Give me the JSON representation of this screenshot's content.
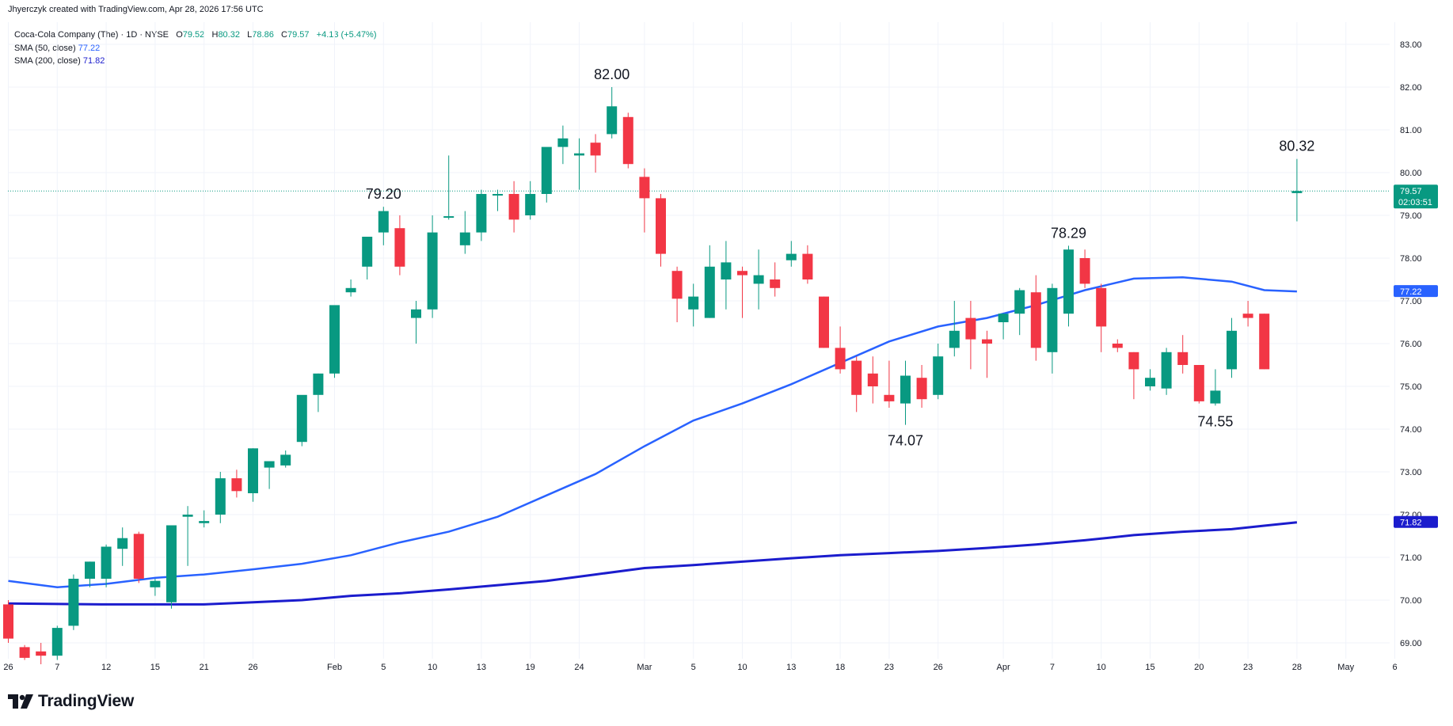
{
  "header": {
    "attribution": "Jhyerczyk created with TradingView.com, Apr 28, 2026 17:56 UTC"
  },
  "legend": {
    "symbol": "Coca-Cola Company (The) · 1D · NYSE",
    "o_label": "O",
    "o_value": "79.52",
    "h_label": "H",
    "h_value": "80.32",
    "l_label": "L",
    "l_value": "78.86",
    "c_label": "C",
    "c_value": "79.57",
    "change": "+4.13 (+5.47%)",
    "sma50_label": "SMA (50, close)",
    "sma50_value": "77.22",
    "sma200_label": "SMA (200, close)",
    "sma200_value": "71.82"
  },
  "brand": {
    "name": "TradingView",
    "icon": "tradingview-logo-icon"
  },
  "colors": {
    "up": "#089981",
    "down": "#f23645",
    "sma50": "#2962ff",
    "sma200": "#1b1ccd",
    "last_price_line": "#089981",
    "grid": "#f0f3fa",
    "text": "#131722"
  },
  "chart_data": {
    "type": "candlestick",
    "ylim": [
      68.6,
      83.4
    ],
    "y_ticks": [
      "69.00",
      "70.00",
      "71.00",
      "72.00",
      "73.00",
      "74.00",
      "75.00",
      "76.00",
      "77.00",
      "78.00",
      "79.00",
      "80.00",
      "81.00",
      "82.00",
      "83.00"
    ],
    "x_ticks": [
      {
        "label": "26",
        "index": 0
      },
      {
        "label": "7",
        "index": 3
      },
      {
        "label": "12",
        "index": 6
      },
      {
        "label": "15",
        "index": 9
      },
      {
        "label": "21",
        "index": 12
      },
      {
        "label": "26",
        "index": 15
      },
      {
        "label": "Feb",
        "index": 20
      },
      {
        "label": "5",
        "index": 23
      },
      {
        "label": "10",
        "index": 26
      },
      {
        "label": "13",
        "index": 29
      },
      {
        "label": "19",
        "index": 32
      },
      {
        "label": "24",
        "index": 35
      },
      {
        "label": "Mar",
        "index": 39
      },
      {
        "label": "5",
        "index": 42
      },
      {
        "label": "10",
        "index": 45
      },
      {
        "label": "13",
        "index": 48
      },
      {
        "label": "18",
        "index": 51
      },
      {
        "label": "23",
        "index": 54
      },
      {
        "label": "26",
        "index": 57
      },
      {
        "label": "Apr",
        "index": 61
      },
      {
        "label": "7",
        "index": 64
      },
      {
        "label": "10",
        "index": 67
      },
      {
        "label": "15",
        "index": 70
      },
      {
        "label": "20",
        "index": 73
      },
      {
        "label": "23",
        "index": 76
      },
      {
        "label": "28",
        "index": 79
      },
      {
        "label": "May",
        "index": 82
      },
      {
        "label": "6",
        "index": 85
      }
    ],
    "candles": [
      [
        69.9,
        70.0,
        69.0,
        69.1
      ],
      [
        68.9,
        68.95,
        68.6,
        68.65
      ],
      [
        68.8,
        69.0,
        68.5,
        68.7
      ],
      [
        68.7,
        69.4,
        68.6,
        69.35
      ],
      [
        69.4,
        70.6,
        69.3,
        70.5
      ],
      [
        70.5,
        70.9,
        70.3,
        70.9
      ],
      [
        70.5,
        71.3,
        70.3,
        71.25
      ],
      [
        71.2,
        71.7,
        70.8,
        71.45
      ],
      [
        71.55,
        71.6,
        70.4,
        70.5
      ],
      [
        70.3,
        70.5,
        70.1,
        70.45
      ],
      [
        69.95,
        71.75,
        69.8,
        71.75
      ],
      [
        71.95,
        72.2,
        70.8,
        72.0
      ],
      [
        71.8,
        72.1,
        71.7,
        71.85
      ],
      [
        72.0,
        73.0,
        71.8,
        72.85
      ],
      [
        72.85,
        73.05,
        72.4,
        72.55
      ],
      [
        72.5,
        73.55,
        72.3,
        73.55
      ],
      [
        73.1,
        73.25,
        72.6,
        73.25
      ],
      [
        73.15,
        73.5,
        73.1,
        73.4
      ],
      [
        73.7,
        74.6,
        73.6,
        74.8
      ],
      [
        74.8,
        75.3,
        74.4,
        75.3
      ],
      [
        75.3,
        76.0,
        75.2,
        76.9
      ],
      [
        77.2,
        77.5,
        77.1,
        77.3
      ],
      [
        77.8,
        78.5,
        77.5,
        78.5
      ],
      [
        78.6,
        79.2,
        78.3,
        79.1
      ],
      [
        78.7,
        79.0,
        77.6,
        77.8
      ],
      [
        76.6,
        77.0,
        76.0,
        76.8
      ],
      [
        76.8,
        79.0,
        76.6,
        78.6
      ],
      [
        78.95,
        80.4,
        78.9,
        78.98
      ],
      [
        78.3,
        79.1,
        78.1,
        78.6
      ],
      [
        78.6,
        79.6,
        78.4,
        79.5
      ],
      [
        79.5,
        79.6,
        79.1,
        79.5
      ],
      [
        79.5,
        79.8,
        78.6,
        78.9
      ],
      [
        79.0,
        79.8,
        78.9,
        79.5
      ],
      [
        79.5,
        80.5,
        79.3,
        80.6
      ],
      [
        80.6,
        81.1,
        80.2,
        80.8
      ],
      [
        80.4,
        80.8,
        79.6,
        80.45
      ],
      [
        80.7,
        80.9,
        80.0,
        80.4
      ],
      [
        80.9,
        82.0,
        80.8,
        81.55
      ],
      [
        81.3,
        81.4,
        80.1,
        80.2
      ],
      [
        79.9,
        80.1,
        78.6,
        79.4
      ],
      [
        79.4,
        79.5,
        77.8,
        78.1
      ],
      [
        77.7,
        77.8,
        76.5,
        77.05
      ],
      [
        76.8,
        77.4,
        76.4,
        77.1
      ],
      [
        76.6,
        78.3,
        76.6,
        77.8
      ],
      [
        77.5,
        78.4,
        76.8,
        77.9
      ],
      [
        77.7,
        77.8,
        76.6,
        77.6
      ],
      [
        77.4,
        78.2,
        76.8,
        77.6
      ],
      [
        77.5,
        77.9,
        77.1,
        77.3
      ],
      [
        77.95,
        78.4,
        77.8,
        78.1
      ],
      [
        78.1,
        78.3,
        77.4,
        77.5
      ],
      [
        77.1,
        77.1,
        75.9,
        75.9
      ],
      [
        75.9,
        76.4,
        75.3,
        75.4
      ],
      [
        75.6,
        75.7,
        74.4,
        74.8
      ],
      [
        75.3,
        75.7,
        74.6,
        75.0
      ],
      [
        74.8,
        75.6,
        74.5,
        74.65
      ],
      [
        74.6,
        75.6,
        74.1,
        75.25
      ],
      [
        75.2,
        75.5,
        74.5,
        74.7
      ],
      [
        74.8,
        76.0,
        74.7,
        75.7
      ],
      [
        75.9,
        77.0,
        75.7,
        76.3
      ],
      [
        76.6,
        77.0,
        75.4,
        76.1
      ],
      [
        76.1,
        76.3,
        75.2,
        76.0
      ],
      [
        76.5,
        76.7,
        76.1,
        76.7
      ],
      [
        76.7,
        77.3,
        76.2,
        77.25
      ],
      [
        77.2,
        77.6,
        75.6,
        75.9
      ],
      [
        75.8,
        77.4,
        75.3,
        77.3
      ],
      [
        76.7,
        78.29,
        76.4,
        78.2
      ],
      [
        78.0,
        78.2,
        77.3,
        77.4
      ],
      [
        77.3,
        77.4,
        75.8,
        76.4
      ],
      [
        76.0,
        76.1,
        75.8,
        75.9
      ],
      [
        75.8,
        75.8,
        74.7,
        75.4
      ],
      [
        75.0,
        75.4,
        74.9,
        75.2
      ],
      [
        74.95,
        75.9,
        74.8,
        75.8
      ],
      [
        75.8,
        76.2,
        75.3,
        75.5
      ],
      [
        75.5,
        75.5,
        74.6,
        74.65
      ],
      [
        74.6,
        75.4,
        74.55,
        74.9
      ],
      [
        75.4,
        76.6,
        75.2,
        76.3
      ],
      [
        76.7,
        77.0,
        76.4,
        76.6
      ],
      [
        76.7,
        76.7,
        75.4,
        75.4
      ],
      [
        null,
        null,
        null,
        null
      ],
      [
        79.52,
        80.32,
        78.86,
        79.57
      ]
    ],
    "sma50": [
      [
        0,
        70.45
      ],
      [
        3,
        70.3
      ],
      [
        6,
        70.38
      ],
      [
        9,
        70.52
      ],
      [
        12,
        70.6
      ],
      [
        15,
        70.72
      ],
      [
        18,
        70.85
      ],
      [
        21,
        71.05
      ],
      [
        24,
        71.35
      ],
      [
        27,
        71.6
      ],
      [
        30,
        71.95
      ],
      [
        33,
        72.45
      ],
      [
        36,
        72.95
      ],
      [
        39,
        73.6
      ],
      [
        42,
        74.2
      ],
      [
        45,
        74.6
      ],
      [
        48,
        75.05
      ],
      [
        51,
        75.55
      ],
      [
        54,
        76.05
      ],
      [
        57,
        76.4
      ],
      [
        60,
        76.6
      ],
      [
        63,
        76.9
      ],
      [
        66,
        77.25
      ],
      [
        69,
        77.52
      ],
      [
        72,
        77.55
      ],
      [
        75,
        77.45
      ],
      [
        77,
        77.25
      ],
      [
        79,
        77.22
      ]
    ],
    "sma200": [
      [
        0,
        69.92
      ],
      [
        6,
        69.9
      ],
      [
        9,
        69.9
      ],
      [
        12,
        69.9
      ],
      [
        15,
        69.95
      ],
      [
        18,
        70.0
      ],
      [
        21,
        70.1
      ],
      [
        24,
        70.16
      ],
      [
        27,
        70.25
      ],
      [
        30,
        70.35
      ],
      [
        33,
        70.45
      ],
      [
        36,
        70.6
      ],
      [
        39,
        70.75
      ],
      [
        42,
        70.82
      ],
      [
        45,
        70.9
      ],
      [
        48,
        70.98
      ],
      [
        51,
        71.05
      ],
      [
        54,
        71.1
      ],
      [
        57,
        71.15
      ],
      [
        60,
        71.22
      ],
      [
        63,
        71.3
      ],
      [
        66,
        71.4
      ],
      [
        69,
        71.52
      ],
      [
        72,
        71.6
      ],
      [
        75,
        71.66
      ],
      [
        77,
        71.74
      ],
      [
        79,
        71.82
      ]
    ],
    "annotations": [
      {
        "text": "82.00",
        "index": 37,
        "price": 82.0,
        "pos": "above"
      },
      {
        "text": "79.20",
        "index": 23,
        "price": 79.2,
        "pos": "above"
      },
      {
        "text": "80.32",
        "index": 79,
        "price": 80.32,
        "pos": "above"
      },
      {
        "text": "78.29",
        "index": 65,
        "price": 78.29,
        "pos": "above"
      },
      {
        "text": "74.07",
        "index": 55,
        "price": 74.1,
        "pos": "below"
      },
      {
        "text": "74.55",
        "index": 74,
        "price": 74.55,
        "pos": "below"
      }
    ],
    "last_price": {
      "price": 79.57,
      "label": "79.57",
      "countdown": "02:03:51"
    },
    "sma50_tag": {
      "price": 77.22,
      "label": "77.22"
    },
    "sma200_tag": {
      "price": 71.82,
      "label": "71.82"
    }
  }
}
